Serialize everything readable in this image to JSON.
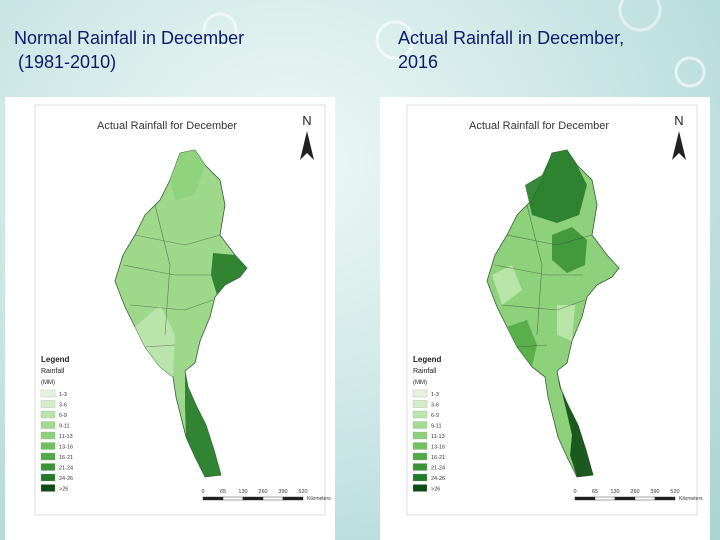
{
  "slide": {
    "left_title": "Normal Rainfall in December",
    "left_subtitle": "(1981-2010)",
    "right_title": "Actual Rainfall in December, 2016"
  },
  "maps": [
    {
      "title": "Actual Rainfall for December",
      "north": "N",
      "legend_title": "Legend",
      "legend_subtitle": "Rainfall",
      "legend_unit": "(MM)",
      "legend": [
        {
          "label": "1-3",
          "color": "#e6f4df"
        },
        {
          "label": "3-6",
          "color": "#d2edc7"
        },
        {
          "label": "6-9",
          "color": "#bce5ad"
        },
        {
          "label": "9-11",
          "color": "#a4db92"
        },
        {
          "label": "11-13",
          "color": "#8dd17a"
        },
        {
          "label": "13-16",
          "color": "#6fc25e"
        },
        {
          "label": "16-21",
          "color": "#52ab46"
        },
        {
          "label": "21-24",
          "color": "#3a9336"
        },
        {
          "label": "24-26",
          "color": "#237a28"
        },
        {
          "label": ">26",
          "color": "#0e4c15"
        }
      ],
      "scale_labels": [
        "0",
        "65",
        "130",
        "260",
        "390",
        "520"
      ],
      "scale_unit": "Kilometers"
    },
    {
      "title": "Actual Rainfall for December",
      "north": "N",
      "legend_title": "Legend",
      "legend_subtitle": "Rainfall",
      "legend_unit": "(MM)",
      "legend": [
        {
          "label": "1-3",
          "color": "#e6f4df"
        },
        {
          "label": "3-6",
          "color": "#d2edc7"
        },
        {
          "label": "6-9",
          "color": "#bce5ad"
        },
        {
          "label": "9-11",
          "color": "#a4db92"
        },
        {
          "label": "11-13",
          "color": "#8dd17a"
        },
        {
          "label": "13-16",
          "color": "#6fc25e"
        },
        {
          "label": "16-21",
          "color": "#52ab46"
        },
        {
          "label": "21-24",
          "color": "#3a9336"
        },
        {
          "label": "24-26",
          "color": "#237a28"
        },
        {
          "label": ">26",
          "color": "#0e4c15"
        }
      ],
      "scale_labels": [
        "0",
        "65",
        "130",
        "260",
        "390",
        "520"
      ],
      "scale_unit": "Kilometers"
    }
  ]
}
